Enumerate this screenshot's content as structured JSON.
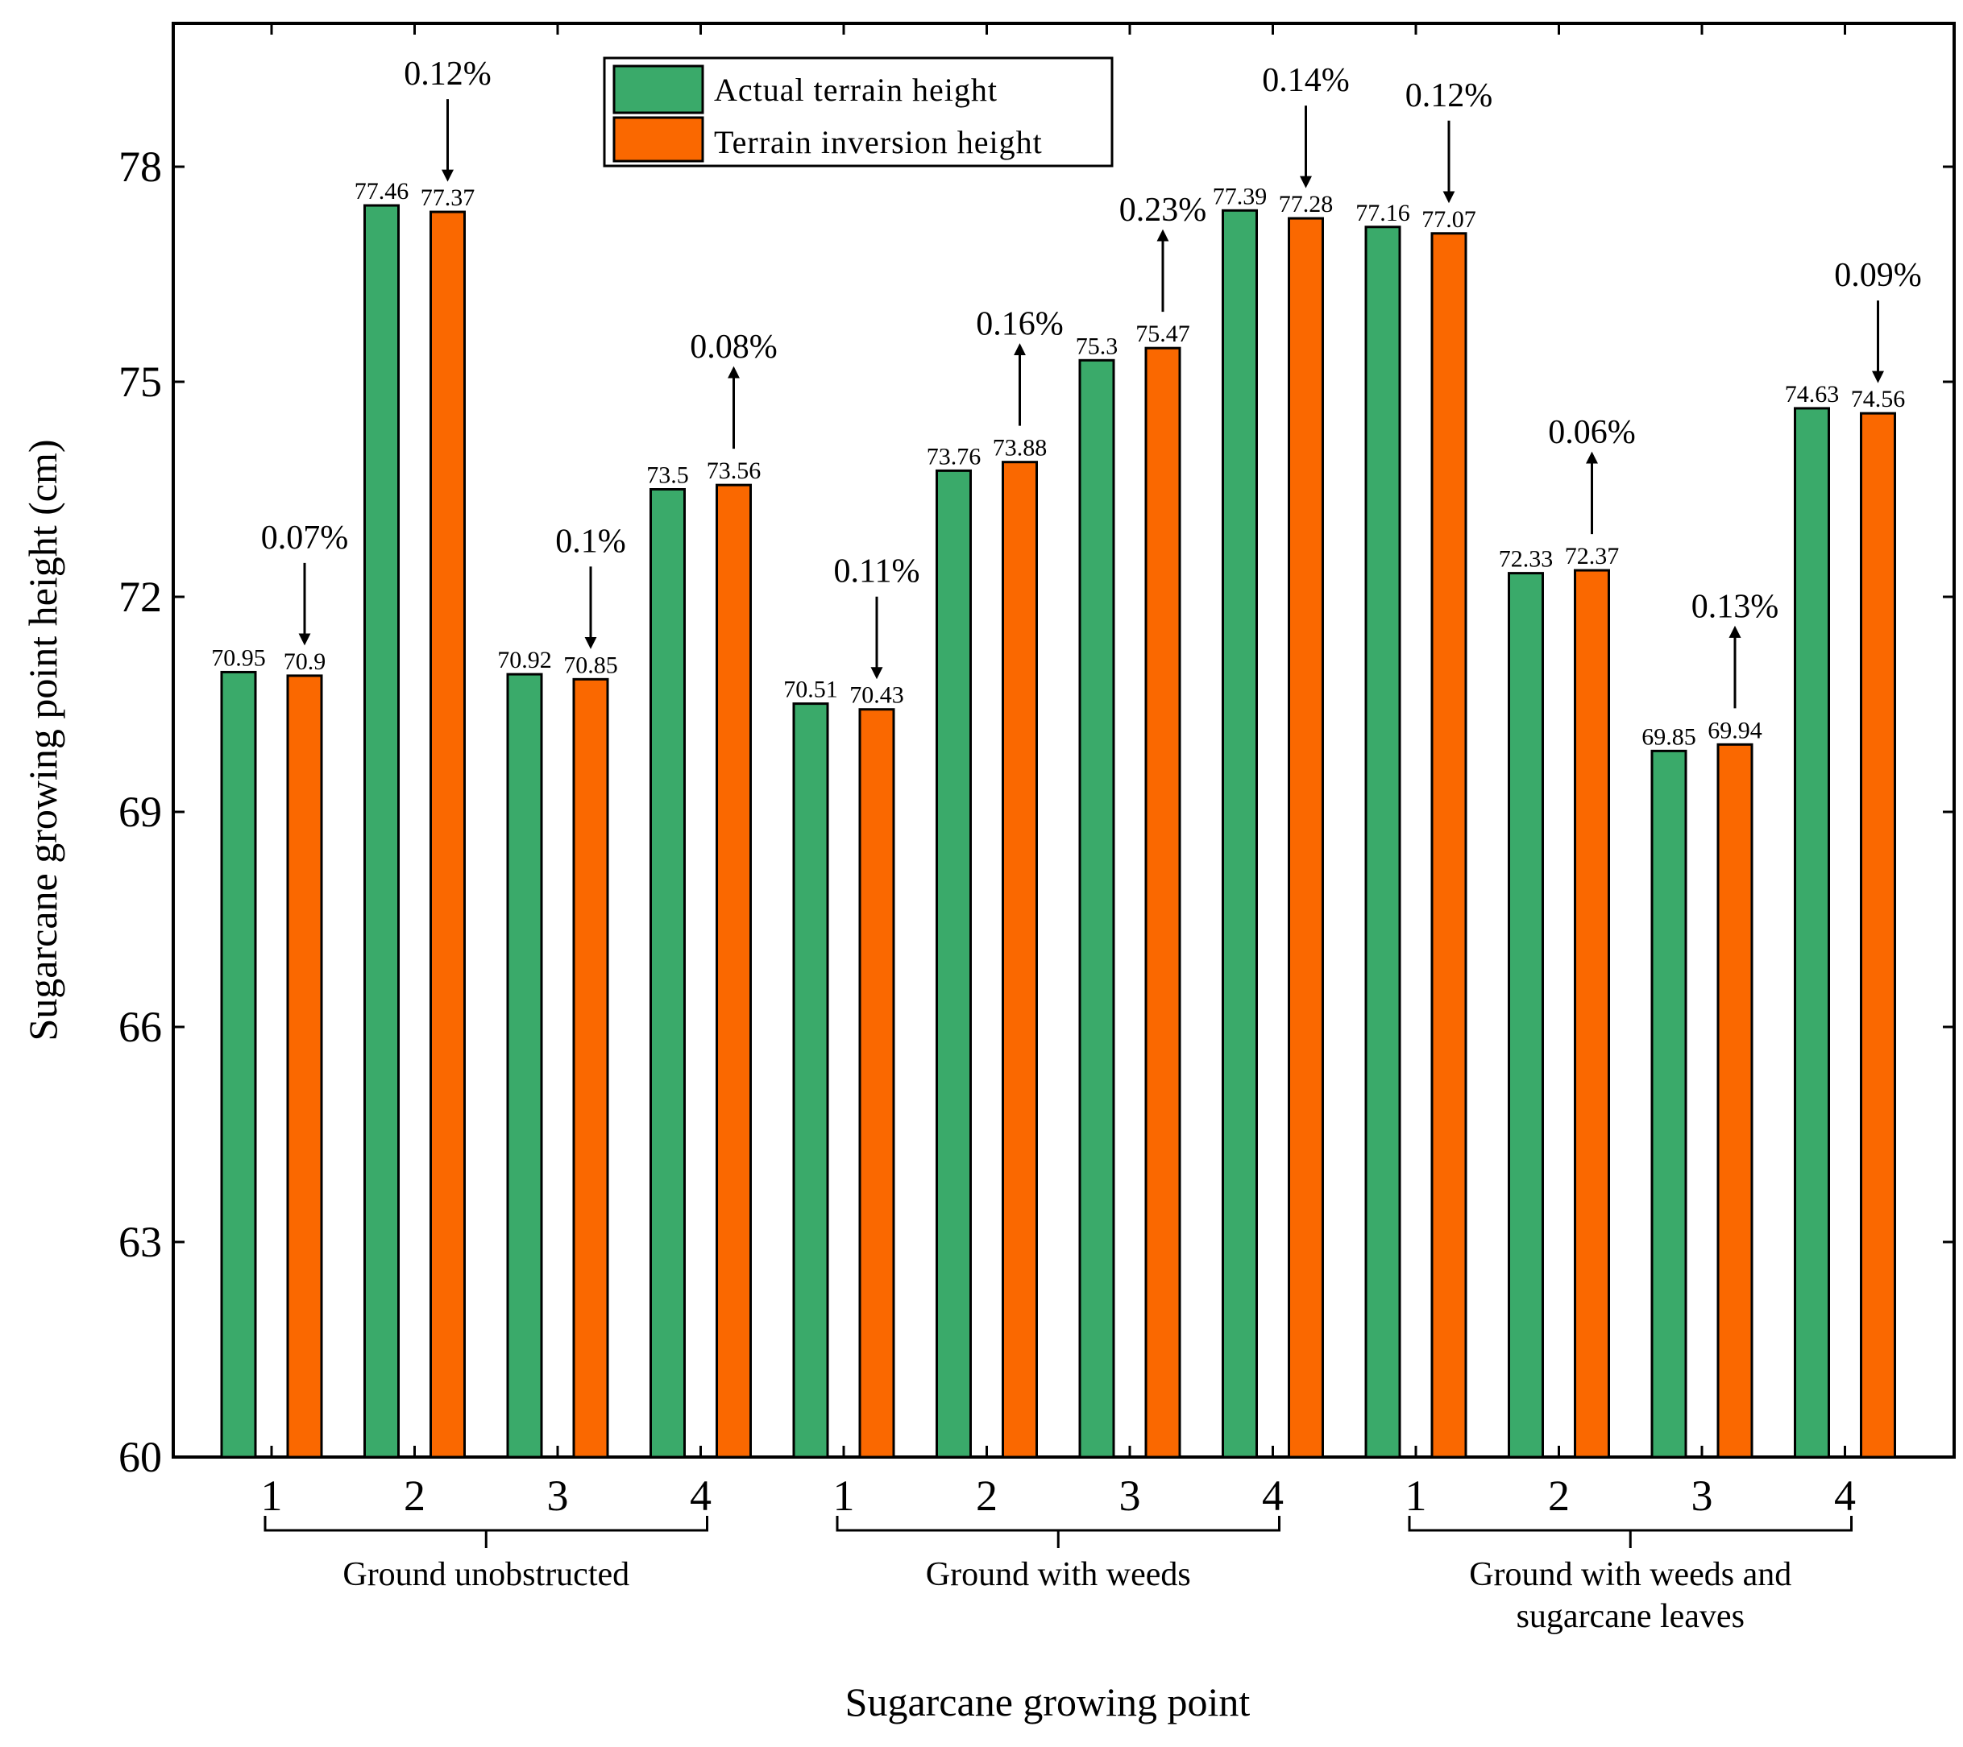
{
  "chart_data": {
    "type": "bar",
    "xlabel": "Sugarcane growing point",
    "ylabel": "Sugarcane growing point height (cm)",
    "ylim": [
      60,
      80
    ],
    "yticks": [
      60,
      63,
      66,
      69,
      72,
      75,
      78
    ],
    "grid": false,
    "legend_position": "top-center",
    "colors": {
      "actual": "#3aaa6a",
      "inversion": "#fa6800"
    },
    "groups": [
      {
        "label": [
          "Ground unobstructed"
        ],
        "categories": [
          "1",
          "2",
          "3",
          "4"
        ]
      },
      {
        "label": [
          "Ground with weeds"
        ],
        "categories": [
          "1",
          "2",
          "3",
          "4"
        ]
      },
      {
        "label": [
          "Ground with weeds and",
          "sugarcane leaves"
        ],
        "categories": [
          "1",
          "2",
          "3",
          "4"
        ]
      }
    ],
    "series": [
      {
        "name": "Actual terrain height",
        "values": [
          70.95,
          77.46,
          70.92,
          73.5,
          70.51,
          73.76,
          75.3,
          77.39,
          77.16,
          72.33,
          69.85,
          74.63
        ],
        "labels": [
          "70.95",
          "77.46",
          "70.92",
          "73.5",
          "70.51",
          "73.76",
          "75.3",
          "77.39",
          "77.16",
          "72.33",
          "69.85",
          "74.63"
        ]
      },
      {
        "name": "Terrain inversion height",
        "values": [
          70.9,
          77.37,
          70.85,
          73.56,
          70.43,
          73.88,
          75.47,
          77.28,
          77.07,
          72.37,
          69.94,
          74.56
        ],
        "labels": [
          "70.9",
          "77.37",
          "70.85",
          "73.56",
          "70.43",
          "73.88",
          "75.47",
          "77.28",
          "77.07",
          "72.37",
          "69.94",
          "74.56"
        ]
      }
    ],
    "annotations": [
      {
        "text": "0.07%",
        "direction": "down"
      },
      {
        "text": "0.12%",
        "direction": "down"
      },
      {
        "text": "0.1%",
        "direction": "down"
      },
      {
        "text": "0.08%",
        "direction": "up"
      },
      {
        "text": "0.11%",
        "direction": "down"
      },
      {
        "text": "0.16%",
        "direction": "up"
      },
      {
        "text": "0.23%",
        "direction": "up"
      },
      {
        "text": "0.14%",
        "direction": "down"
      },
      {
        "text": "0.12%",
        "direction": "down"
      },
      {
        "text": "0.06%",
        "direction": "up"
      },
      {
        "text": "0.13%",
        "direction": "up"
      },
      {
        "text": "0.09%",
        "direction": "down"
      }
    ]
  }
}
